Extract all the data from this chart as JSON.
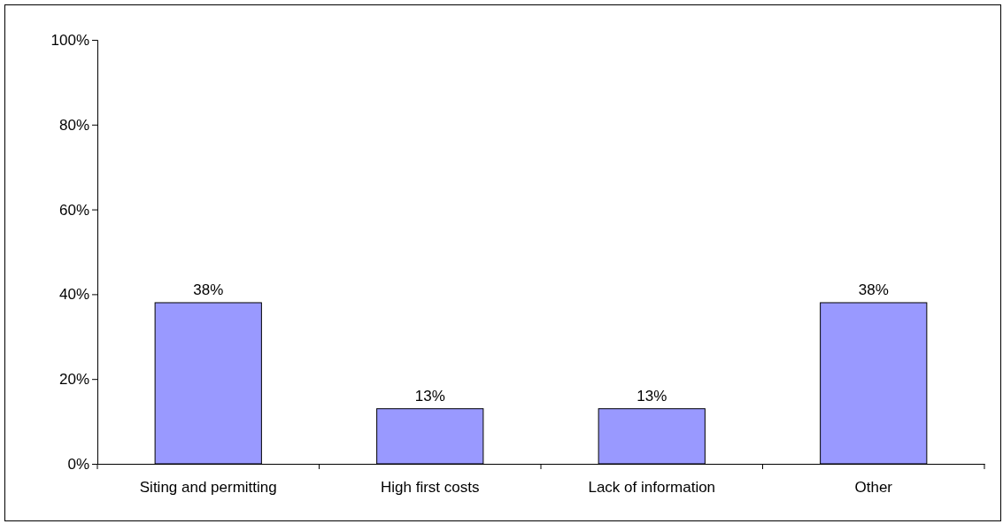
{
  "chart_data": {
    "type": "bar",
    "categories": [
      "Siting and permitting",
      "High first costs",
      "Lack of information",
      "Other"
    ],
    "values": [
      38,
      13,
      13,
      38
    ],
    "value_labels": [
      "38%",
      "13%",
      "13%",
      "38%"
    ],
    "color": "#9999ff",
    "ylim": [
      0,
      100
    ],
    "yticks": [
      {
        "value": 0,
        "label": "0%"
      },
      {
        "value": 20,
        "label": "20%"
      },
      {
        "value": 40,
        "label": "40%"
      },
      {
        "value": 60,
        "label": "60%"
      },
      {
        "value": 80,
        "label": "80%"
      },
      {
        "value": 100,
        "label": "100%"
      }
    ],
    "grid": false
  }
}
